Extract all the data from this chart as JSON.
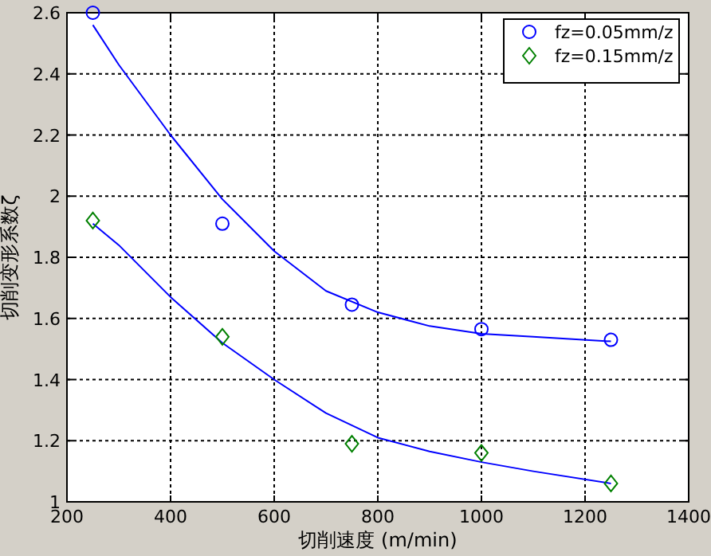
{
  "chart_data": {
    "type": "scatter",
    "xlabel": "切削速度 (m/min)",
    "ylabel": "切削变形系数ζ",
    "xlim": [
      200,
      1400
    ],
    "ylim": [
      1,
      2.6
    ],
    "xticks": [
      200,
      400,
      600,
      800,
      1000,
      1200,
      1400
    ],
    "yticks": [
      1,
      1.2,
      1.4,
      1.6,
      1.8,
      2,
      2.2,
      2.4,
      2.6
    ],
    "grid": true,
    "legend": "top right",
    "series": [
      {
        "name": "fz=0.05mm/z",
        "color": "#0000ff",
        "marker": "circle",
        "x": [
          250,
          500,
          750,
          1000,
          1250
        ],
        "values": [
          2.6,
          1.91,
          1.645,
          1.565,
          1.53
        ]
      },
      {
        "name": "fz=0.15mm/z",
        "color": "#008000",
        "marker": "diamond",
        "x": [
          250,
          500,
          750,
          1000,
          1250
        ],
        "values": [
          1.92,
          1.54,
          1.19,
          1.16,
          1.06
        ]
      },
      {
        "type": "line",
        "color": "#0000ff",
        "marker": "none",
        "x": [
          250,
          300,
          400,
          500,
          600,
          700,
          800,
          900,
          1000,
          1100,
          1250
        ],
        "values": [
          2.56,
          2.43,
          2.2,
          1.99,
          1.82,
          1.69,
          1.62,
          1.575,
          1.55,
          1.54,
          1.525
        ]
      },
      {
        "type": "line",
        "color": "#0000ff",
        "marker": "none",
        "x": [
          250,
          300,
          400,
          500,
          600,
          700,
          800,
          900,
          1000,
          1100,
          1250
        ],
        "values": [
          1.91,
          1.84,
          1.67,
          1.52,
          1.4,
          1.29,
          1.21,
          1.165,
          1.13,
          1.1,
          1.06
        ]
      }
    ]
  }
}
